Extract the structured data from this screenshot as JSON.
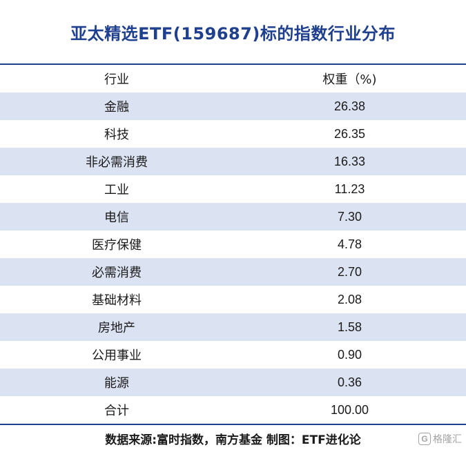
{
  "title": "亚太精选ETF(159687)标的指数行业分布",
  "table": {
    "headers": [
      "行业",
      "权重（%)"
    ],
    "rows": [
      {
        "industry": "金融",
        "weight": "26.38"
      },
      {
        "industry": "科技",
        "weight": "26.35"
      },
      {
        "industry": "非必需消费",
        "weight": "16.33"
      },
      {
        "industry": "工业",
        "weight": "11.23"
      },
      {
        "industry": "电信",
        "weight": "7.30"
      },
      {
        "industry": "医疗保健",
        "weight": "4.78"
      },
      {
        "industry": "必需消费",
        "weight": "2.70"
      },
      {
        "industry": "基础材料",
        "weight": "2.08"
      },
      {
        "industry": "房地产",
        "weight": "1.58"
      },
      {
        "industry": "公用事业",
        "weight": "0.90"
      },
      {
        "industry": "能源",
        "weight": "0.36"
      },
      {
        "industry": "合计",
        "weight": "100.00"
      }
    ]
  },
  "footer": "数据来源:富时指数，南方基金  制图：ETF进化论",
  "watermark": {
    "logo": "G",
    "text": "格隆汇"
  },
  "colors": {
    "accent": "#1f3f8f",
    "row_shade": "#dbe2f2"
  }
}
